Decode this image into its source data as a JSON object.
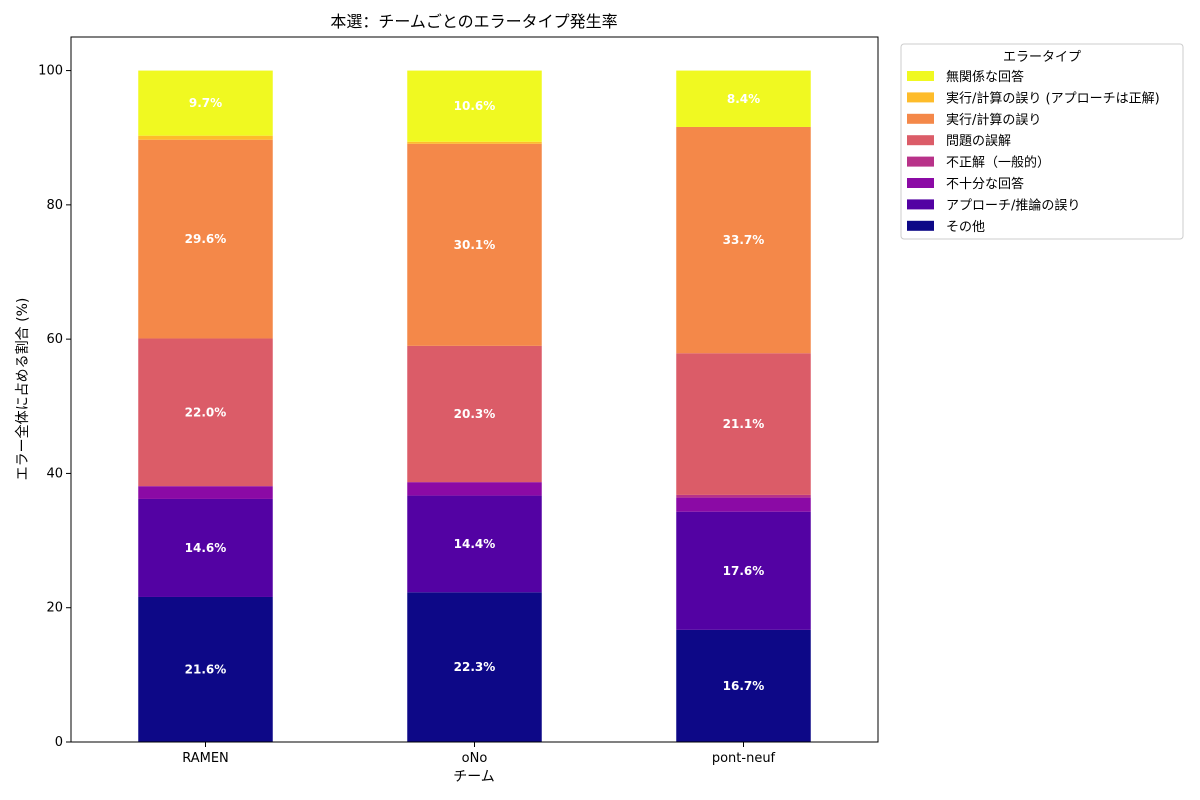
{
  "chart_data": {
    "type": "bar",
    "stacked": true,
    "title": "本選：チームごとのエラータイプ発生率",
    "xlabel": "チーム",
    "ylabel": "エラー全体に占める割合 (%)",
    "ylim": [
      0,
      105
    ],
    "yticks": [
      0,
      20,
      40,
      60,
      80,
      100
    ],
    "grid": false,
    "categories": [
      "RAMEN",
      "oNo",
      "pont-neuf"
    ],
    "legend": {
      "title": "エラータイプ",
      "placement": "outside-top-right"
    },
    "series": [
      {
        "name": "その他",
        "color": "#0d0887",
        "values": [
          21.6,
          22.3,
          16.7
        ],
        "labels": [
          "21.6%",
          "22.3%",
          "16.7%"
        ]
      },
      {
        "name": "アプローチ/推論の誤り",
        "color": "#5302a3",
        "values": [
          14.6,
          14.4,
          17.6
        ],
        "labels": [
          "14.6%",
          "14.4%",
          "17.6%"
        ]
      },
      {
        "name": "不十分な回答",
        "color": "#8b0aa5",
        "values": [
          1.9,
          2.0,
          2.1
        ],
        "labels": [
          "",
          "",
          ""
        ]
      },
      {
        "name": "不正解（一般的）",
        "color": "#b83289",
        "values": [
          0.0,
          0.0,
          0.4
        ],
        "labels": [
          "",
          "",
          ""
        ]
      },
      {
        "name": "問題の誤解",
        "color": "#db5c68",
        "values": [
          22.0,
          20.3,
          21.1
        ],
        "labels": [
          "22.0%",
          "20.3%",
          "21.1%"
        ]
      },
      {
        "name": "実行/計算の誤り",
        "color": "#f48849",
        "values": [
          29.6,
          30.1,
          33.7
        ],
        "labels": [
          "29.6%",
          "30.1%",
          "33.7%"
        ]
      },
      {
        "name": "実行/計算の誤り (アプローチは正解)",
        "color": "#febc2a",
        "values": [
          0.6,
          0.3,
          0.0
        ],
        "labels": [
          "",
          "",
          ""
        ]
      },
      {
        "name": "無関係な回答",
        "color": "#f0f921",
        "values": [
          9.7,
          10.6,
          8.4
        ],
        "labels": [
          "9.7%",
          "10.6%",
          "8.4%"
        ]
      }
    ]
  }
}
